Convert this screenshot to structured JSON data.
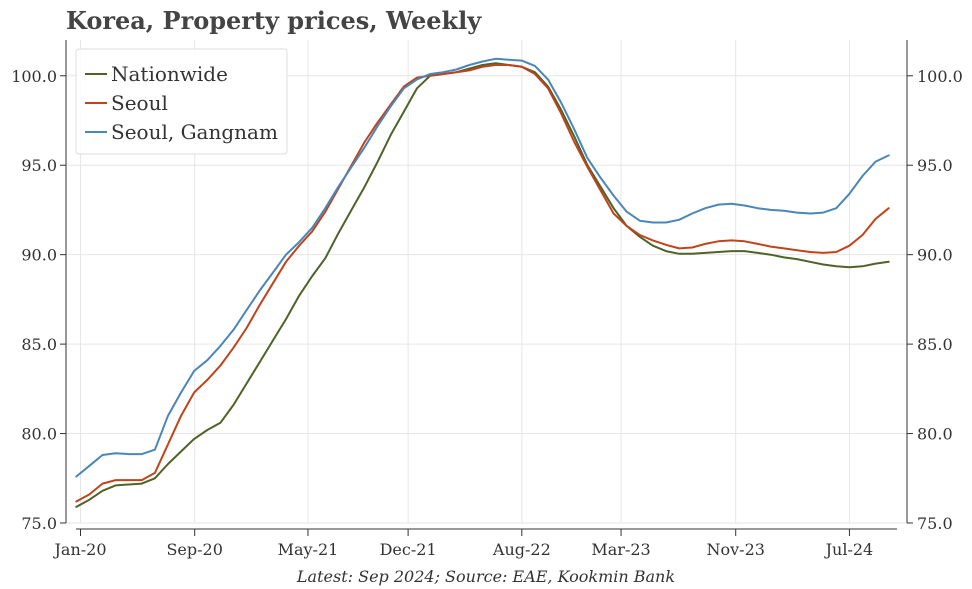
{
  "title": "Korea, Property prices, Weekly",
  "footnote": "Latest: Sep 2024; Source: EAE, Kookmin Bank",
  "chart_data": {
    "type": "line",
    "title": "Korea, Property prices, Weekly",
    "xlabel": "",
    "ylabel": "",
    "x_axis_type": "date",
    "xlim": [
      "2019-12-01",
      "2024-11-01"
    ],
    "ylim": [
      75,
      102
    ],
    "y_ticks": [
      75.0,
      80.0,
      85.0,
      90.0,
      95.0,
      100.0
    ],
    "y_tick_labels": [
      "75.0",
      "80.0",
      "85.0",
      "90.0",
      "95.0",
      "100.0"
    ],
    "y_axis_both_sides": true,
    "x_ticks": [
      "2020-01-01",
      "2020-09-01",
      "2021-05-01",
      "2021-12-01",
      "2022-08-01",
      "2023-03-01",
      "2023-11-01",
      "2024-07-01"
    ],
    "x_tick_labels": [
      "Jan-20",
      "Sep-20",
      "May-21",
      "Dec-21",
      "Aug-22",
      "Mar-23",
      "Nov-23",
      "Jul-24"
    ],
    "grid": true,
    "legend_position": "top-left",
    "series": [
      {
        "name": "Nationwide",
        "color": "#4f6228",
        "points": [
          [
            "2019-12-23",
            75.9
          ],
          [
            "2020-01-20",
            76.3
          ],
          [
            "2020-02-17",
            76.8
          ],
          [
            "2020-03-16",
            77.1
          ],
          [
            "2020-04-13",
            77.15
          ],
          [
            "2020-05-11",
            77.2
          ],
          [
            "2020-06-08",
            77.5
          ],
          [
            "2020-07-06",
            78.3
          ],
          [
            "2020-08-03",
            79.0
          ],
          [
            "2020-08-31",
            79.7
          ],
          [
            "2020-09-28",
            80.2
          ],
          [
            "2020-10-26",
            80.6
          ],
          [
            "2020-11-23",
            81.6
          ],
          [
            "2020-12-21",
            82.8
          ],
          [
            "2021-01-18",
            84.0
          ],
          [
            "2021-02-15",
            85.2
          ],
          [
            "2021-03-15",
            86.4
          ],
          [
            "2021-04-12",
            87.7
          ],
          [
            "2021-05-10",
            88.8
          ],
          [
            "2021-06-07",
            89.8
          ],
          [
            "2021-07-05",
            91.2
          ],
          [
            "2021-08-02",
            92.5
          ],
          [
            "2021-08-30",
            93.8
          ],
          [
            "2021-09-27",
            95.2
          ],
          [
            "2021-10-25",
            96.7
          ],
          [
            "2021-11-22",
            98.0
          ],
          [
            "2021-12-20",
            99.3
          ],
          [
            "2022-01-17",
            100.0
          ],
          [
            "2022-02-14",
            100.1
          ],
          [
            "2022-03-14",
            100.2
          ],
          [
            "2022-04-11",
            100.4
          ],
          [
            "2022-05-09",
            100.6
          ],
          [
            "2022-06-06",
            100.7
          ],
          [
            "2022-07-04",
            100.6
          ],
          [
            "2022-08-01",
            100.5
          ],
          [
            "2022-08-29",
            100.2
          ],
          [
            "2022-09-26",
            99.4
          ],
          [
            "2022-10-24",
            98.1
          ],
          [
            "2022-11-21",
            96.6
          ],
          [
            "2022-12-19",
            95.0
          ],
          [
            "2023-01-16",
            93.8
          ],
          [
            "2023-02-13",
            92.6
          ],
          [
            "2023-03-13",
            91.6
          ],
          [
            "2023-04-10",
            91.0
          ],
          [
            "2023-05-08",
            90.5
          ],
          [
            "2023-06-05",
            90.2
          ],
          [
            "2023-07-03",
            90.05
          ],
          [
            "2023-07-31",
            90.05
          ],
          [
            "2023-08-28",
            90.1
          ],
          [
            "2023-09-25",
            90.15
          ],
          [
            "2023-10-23",
            90.2
          ],
          [
            "2023-11-20",
            90.2
          ],
          [
            "2023-12-18",
            90.1
          ],
          [
            "2024-01-15",
            90.0
          ],
          [
            "2024-02-12",
            89.85
          ],
          [
            "2024-03-11",
            89.75
          ],
          [
            "2024-04-08",
            89.6
          ],
          [
            "2024-05-06",
            89.45
          ],
          [
            "2024-06-03",
            89.35
          ],
          [
            "2024-07-01",
            89.3
          ],
          [
            "2024-07-29",
            89.35
          ],
          [
            "2024-08-26",
            89.5
          ],
          [
            "2024-09-23",
            89.6
          ]
        ]
      },
      {
        "name": "Seoul",
        "color": "#c0441b",
        "points": [
          [
            "2019-12-23",
            76.2
          ],
          [
            "2020-01-20",
            76.6
          ],
          [
            "2020-02-17",
            77.2
          ],
          [
            "2020-03-16",
            77.4
          ],
          [
            "2020-04-13",
            77.4
          ],
          [
            "2020-05-11",
            77.4
          ],
          [
            "2020-06-08",
            77.8
          ],
          [
            "2020-07-06",
            79.4
          ],
          [
            "2020-08-03",
            81.0
          ],
          [
            "2020-08-31",
            82.3
          ],
          [
            "2020-09-28",
            83.0
          ],
          [
            "2020-10-26",
            83.8
          ],
          [
            "2020-11-23",
            84.8
          ],
          [
            "2020-12-21",
            85.9
          ],
          [
            "2021-01-18",
            87.2
          ],
          [
            "2021-02-15",
            88.4
          ],
          [
            "2021-03-15",
            89.6
          ],
          [
            "2021-04-12",
            90.5
          ],
          [
            "2021-05-10",
            91.3
          ],
          [
            "2021-06-07",
            92.4
          ],
          [
            "2021-07-05",
            93.7
          ],
          [
            "2021-08-02",
            95.0
          ],
          [
            "2021-08-30",
            96.3
          ],
          [
            "2021-09-27",
            97.4
          ],
          [
            "2021-10-25",
            98.4
          ],
          [
            "2021-11-22",
            99.4
          ],
          [
            "2021-12-20",
            99.9
          ],
          [
            "2022-01-17",
            100.0
          ],
          [
            "2022-02-14",
            100.1
          ],
          [
            "2022-03-14",
            100.2
          ],
          [
            "2022-04-11",
            100.3
          ],
          [
            "2022-05-09",
            100.5
          ],
          [
            "2022-06-06",
            100.6
          ],
          [
            "2022-07-04",
            100.6
          ],
          [
            "2022-08-01",
            100.5
          ],
          [
            "2022-08-29",
            100.1
          ],
          [
            "2022-09-26",
            99.3
          ],
          [
            "2022-10-24",
            97.9
          ],
          [
            "2022-11-21",
            96.3
          ],
          [
            "2022-12-19",
            94.9
          ],
          [
            "2023-01-16",
            93.6
          ],
          [
            "2023-02-13",
            92.3
          ],
          [
            "2023-03-13",
            91.6
          ],
          [
            "2023-04-10",
            91.1
          ],
          [
            "2023-05-08",
            90.8
          ],
          [
            "2023-06-05",
            90.55
          ],
          [
            "2023-07-03",
            90.35
          ],
          [
            "2023-07-31",
            90.4
          ],
          [
            "2023-08-28",
            90.6
          ],
          [
            "2023-09-25",
            90.75
          ],
          [
            "2023-10-23",
            90.8
          ],
          [
            "2023-11-20",
            90.75
          ],
          [
            "2023-12-18",
            90.6
          ],
          [
            "2024-01-15",
            90.45
          ],
          [
            "2024-02-12",
            90.35
          ],
          [
            "2024-03-11",
            90.25
          ],
          [
            "2024-04-08",
            90.15
          ],
          [
            "2024-05-06",
            90.1
          ],
          [
            "2024-06-03",
            90.15
          ],
          [
            "2024-07-01",
            90.5
          ],
          [
            "2024-07-29",
            91.1
          ],
          [
            "2024-08-26",
            92.0
          ],
          [
            "2024-09-23",
            92.6
          ]
        ]
      },
      {
        "name": "Seoul, Gangnam",
        "color": "#4a86b8",
        "points": [
          [
            "2019-12-23",
            77.6
          ],
          [
            "2020-01-20",
            78.2
          ],
          [
            "2020-02-17",
            78.8
          ],
          [
            "2020-03-16",
            78.9
          ],
          [
            "2020-04-13",
            78.85
          ],
          [
            "2020-05-11",
            78.85
          ],
          [
            "2020-06-08",
            79.1
          ],
          [
            "2020-07-06",
            81.0
          ],
          [
            "2020-08-03",
            82.3
          ],
          [
            "2020-08-31",
            83.5
          ],
          [
            "2020-09-28",
            84.1
          ],
          [
            "2020-10-26",
            84.9
          ],
          [
            "2020-11-23",
            85.8
          ],
          [
            "2020-12-21",
            86.9
          ],
          [
            "2021-01-18",
            88.0
          ],
          [
            "2021-02-15",
            89.0
          ],
          [
            "2021-03-15",
            90.0
          ],
          [
            "2021-04-12",
            90.7
          ],
          [
            "2021-05-10",
            91.5
          ],
          [
            "2021-06-07",
            92.6
          ],
          [
            "2021-07-05",
            93.8
          ],
          [
            "2021-08-02",
            94.9
          ],
          [
            "2021-08-30",
            96.0
          ],
          [
            "2021-09-27",
            97.2
          ],
          [
            "2021-10-25",
            98.3
          ],
          [
            "2021-11-22",
            99.3
          ],
          [
            "2021-12-20",
            99.8
          ],
          [
            "2022-01-17",
            100.1
          ],
          [
            "2022-02-14",
            100.2
          ],
          [
            "2022-03-14",
            100.35
          ],
          [
            "2022-04-11",
            100.6
          ],
          [
            "2022-05-09",
            100.8
          ],
          [
            "2022-06-06",
            100.95
          ],
          [
            "2022-07-04",
            100.9
          ],
          [
            "2022-08-01",
            100.85
          ],
          [
            "2022-08-29",
            100.55
          ],
          [
            "2022-09-26",
            99.8
          ],
          [
            "2022-10-24",
            98.5
          ],
          [
            "2022-11-21",
            97.0
          ],
          [
            "2022-12-19",
            95.4
          ],
          [
            "2023-01-16",
            94.3
          ],
          [
            "2023-02-13",
            93.3
          ],
          [
            "2023-03-13",
            92.4
          ],
          [
            "2023-04-10",
            91.9
          ],
          [
            "2023-05-08",
            91.8
          ],
          [
            "2023-06-05",
            91.8
          ],
          [
            "2023-07-03",
            91.95
          ],
          [
            "2023-07-31",
            92.3
          ],
          [
            "2023-08-28",
            92.6
          ],
          [
            "2023-09-25",
            92.8
          ],
          [
            "2023-10-23",
            92.85
          ],
          [
            "2023-11-20",
            92.75
          ],
          [
            "2023-12-18",
            92.6
          ],
          [
            "2024-01-15",
            92.5
          ],
          [
            "2024-02-12",
            92.45
          ],
          [
            "2024-03-11",
            92.35
          ],
          [
            "2024-04-08",
            92.3
          ],
          [
            "2024-05-06",
            92.35
          ],
          [
            "2024-06-03",
            92.6
          ],
          [
            "2024-07-01",
            93.4
          ],
          [
            "2024-07-29",
            94.4
          ],
          [
            "2024-08-26",
            95.2
          ],
          [
            "2024-09-23",
            95.55
          ]
        ]
      }
    ]
  }
}
